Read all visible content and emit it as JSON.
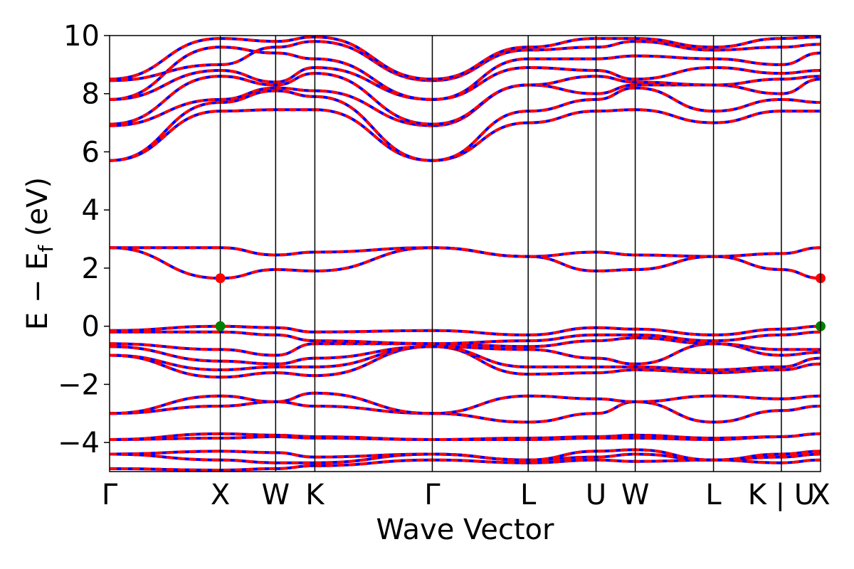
{
  "chart_data": {
    "type": "line",
    "title": "",
    "xlabel": "Wave Vector",
    "ylabel": "E − E",
    "ylabel_sub": "f",
    "ylabel_unit": " (eV)",
    "ylim": [
      -5,
      10
    ],
    "yticks": [
      -4,
      -2,
      0,
      2,
      4,
      6,
      8,
      10
    ],
    "ytick_labels": [
      "−4",
      "−2",
      "0",
      "2",
      "4",
      "6",
      "8",
      "10"
    ],
    "kpath": [
      {
        "label": "Γ",
        "x": 0.0
      },
      {
        "label": "X",
        "x": 1.0
      },
      {
        "label": "W",
        "x": 1.5
      },
      {
        "label": "K",
        "x": 1.854
      },
      {
        "label": "Γ",
        "x": 2.915
      },
      {
        "label": "L",
        "x": 3.781
      },
      {
        "label": "U",
        "x": 4.394
      },
      {
        "label": "W",
        "x": 4.748
      },
      {
        "label": "L",
        "x": 5.455
      },
      {
        "label": "K",
        "x": 6.068
      },
      {
        "label": "U",
        "x": 6.068
      },
      {
        "label": "X",
        "x": 6.422
      }
    ],
    "kpath_tick_labels": [
      {
        "label": "Γ",
        "x": 0.0
      },
      {
        "label": "X",
        "x": 1.0
      },
      {
        "label": "W",
        "x": 1.5
      },
      {
        "label": "K",
        "x": 1.854
      },
      {
        "label": "Γ",
        "x": 2.915
      },
      {
        "label": "L",
        "x": 3.781
      },
      {
        "label": "U",
        "x": 4.394
      },
      {
        "label": "W",
        "x": 4.748
      },
      {
        "label": "L",
        "x": 5.455
      },
      {
        "label": "K | U",
        "x": 6.068
      },
      {
        "label": "X",
        "x": 6.422
      }
    ],
    "series_colors": {
      "spin_up": "#ff0000",
      "spin_down": "#0000ff"
    },
    "highlight_points": [
      {
        "kind": "cbm",
        "x": 1.0,
        "y": 1.65,
        "color": "#ff0000"
      },
      {
        "kind": "vbm",
        "x": 1.0,
        "y": 0.0,
        "color": "#008000"
      },
      {
        "kind": "cbm",
        "x": 6.422,
        "y": 1.65,
        "color": "#ff0000"
      },
      {
        "kind": "vbm",
        "x": 6.422,
        "y": 0.0,
        "color": "#008000"
      }
    ],
    "bands": [
      [
        -4.9,
        -4.95,
        -4.9,
        -4.8,
        -4.6,
        -4.7,
        -4.6,
        -4.65,
        -4.6,
        -4.7,
        -4.6
      ],
      [
        -4.4,
        -4.6,
        -4.7,
        -4.7,
        -4.4,
        -4.6,
        -4.5,
        -4.4,
        -4.6,
        -4.5,
        -4.4
      ],
      [
        -4.4,
        -4.3,
        -4.35,
        -4.5,
        -4.4,
        -4.6,
        -4.3,
        -4.25,
        -4.6,
        -4.4,
        -4.3
      ],
      [
        -3.9,
        -3.85,
        -3.8,
        -3.85,
        -3.9,
        -3.85,
        -3.8,
        -3.75,
        -3.85,
        -3.8,
        -3.7
      ],
      [
        -3.9,
        -3.7,
        -3.75,
        -3.8,
        -3.9,
        -3.9,
        -3.85,
        -3.85,
        -3.9,
        -3.8,
        -3.7
      ],
      [
        -3.0,
        -2.75,
        -2.6,
        -2.75,
        -3.0,
        -3.3,
        -3.0,
        -2.6,
        -3.3,
        -2.9,
        -2.75
      ],
      [
        -3.0,
        -2.4,
        -2.6,
        -2.3,
        -3.0,
        -2.4,
        -2.5,
        -2.6,
        -2.4,
        -2.5,
        -2.4
      ],
      [
        -1.0,
        -1.75,
        -1.6,
        -1.7,
        -0.7,
        -1.65,
        -1.6,
        -1.5,
        -1.6,
        -1.5,
        -1.3
      ],
      [
        -1.0,
        -1.5,
        -1.4,
        -1.4,
        -0.7,
        -1.4,
        -1.4,
        -1.4,
        -1.5,
        -1.4,
        -1.1
      ],
      [
        -0.7,
        -1.2,
        -1.3,
        -1.1,
        -0.7,
        -0.8,
        -1.1,
        -1.3,
        -0.6,
        -1.0,
        -0.9
      ],
      [
        -0.6,
        -0.8,
        -1.0,
        -0.6,
        -0.6,
        -0.7,
        -0.5,
        -0.4,
        -0.6,
        -0.8,
        -0.8
      ],
      [
        -0.2,
        -0.2,
        -0.3,
        -0.5,
        -0.6,
        -0.5,
        -0.3,
        -0.3,
        -0.5,
        -0.3,
        -0.2
      ],
      [
        -0.15,
        0.0,
        -0.05,
        -0.2,
        -0.15,
        -0.3,
        -0.05,
        -0.1,
        -0.3,
        -0.1,
        0.0
      ],
      [
        2.7,
        1.65,
        1.95,
        1.9,
        2.7,
        2.4,
        1.9,
        1.95,
        2.4,
        1.95,
        1.65
      ],
      [
        2.7,
        2.7,
        2.45,
        2.55,
        2.7,
        2.4,
        2.55,
        2.45,
        2.4,
        2.5,
        2.7
      ],
      [
        5.7,
        7.4,
        7.45,
        7.45,
        5.7,
        7.0,
        7.4,
        7.45,
        7.0,
        7.4,
        7.4
      ],
      [
        5.7,
        7.7,
        8.1,
        7.9,
        5.7,
        7.4,
        7.8,
        8.2,
        7.4,
        7.8,
        7.7
      ],
      [
        6.9,
        7.8,
        8.2,
        8.1,
        6.9,
        8.3,
        8.0,
        8.3,
        8.3,
        8.0,
        8.5
      ],
      [
        6.95,
        8.6,
        8.3,
        8.7,
        6.95,
        8.3,
        8.6,
        8.4,
        8.3,
        8.5,
        8.6
      ],
      [
        7.8,
        8.8,
        8.4,
        8.9,
        7.8,
        8.9,
        8.8,
        8.5,
        8.9,
        8.7,
        8.8
      ],
      [
        7.8,
        9.6,
        9.4,
        9.2,
        7.8,
        9.2,
        9.2,
        9.3,
        9.2,
        9.0,
        9.4
      ],
      [
        8.45,
        9.0,
        9.6,
        9.8,
        8.45,
        9.5,
        9.6,
        9.8,
        9.5,
        9.6,
        9.7
      ],
      [
        8.5,
        9.9,
        9.8,
        9.95,
        8.5,
        9.6,
        9.9,
        9.9,
        9.6,
        9.9,
        9.95
      ]
    ]
  }
}
